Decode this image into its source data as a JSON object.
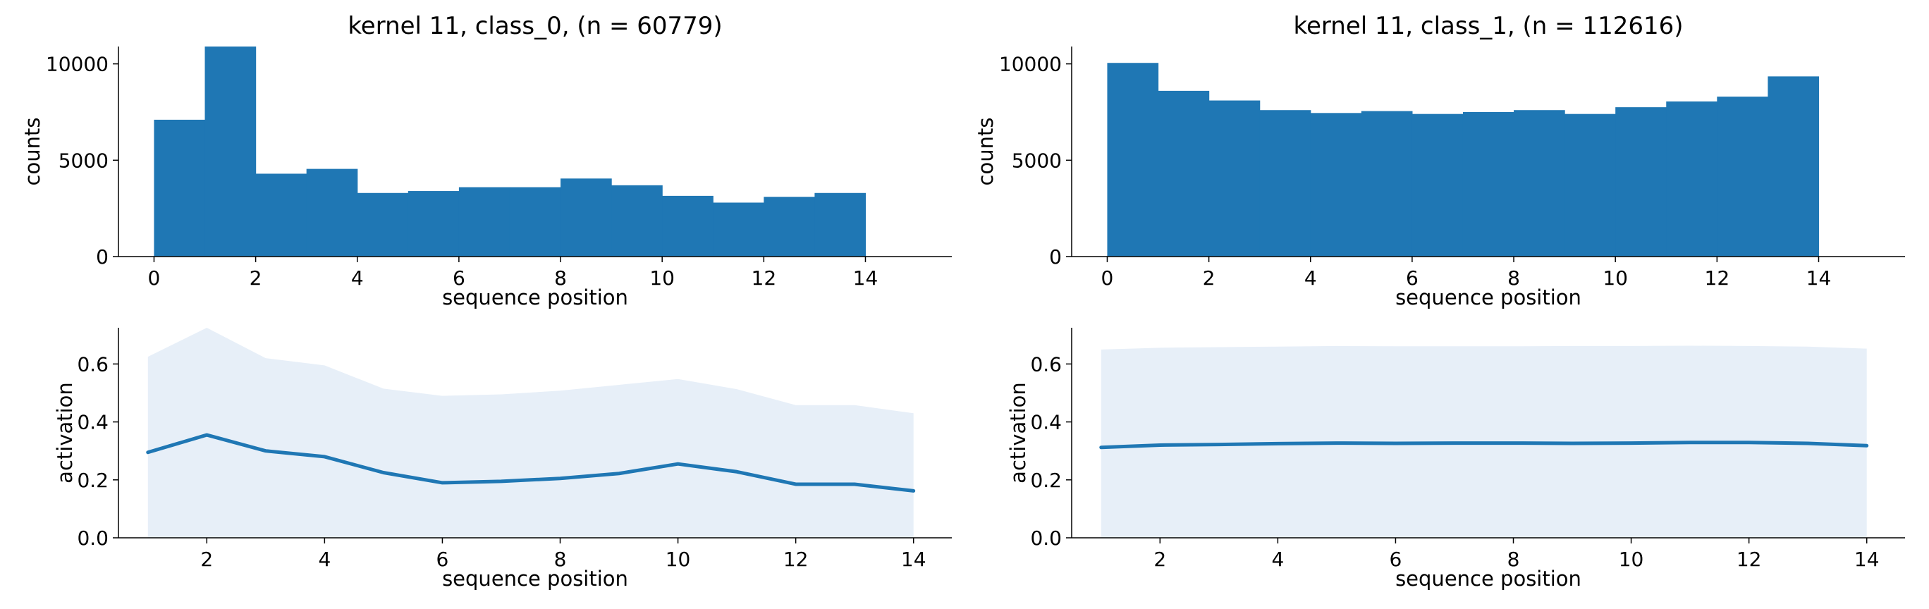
{
  "chart_data": [
    {
      "type": "bar",
      "title": "kernel 11, class_0, (n = 60779)",
      "xlabel": "sequence position",
      "ylabel": "counts",
      "bin_edges": [
        0,
        1,
        2,
        3,
        4,
        5,
        6,
        7,
        8,
        9,
        10,
        11,
        12,
        13,
        14
      ],
      "values": [
        7100,
        10900,
        4300,
        4550,
        3300,
        3400,
        3600,
        3600,
        4050,
        3700,
        3150,
        2800,
        3100,
        3300
      ],
      "xlim": [
        -0.7,
        15.7
      ],
      "ylim": [
        0,
        10900
      ],
      "xticks": [
        "0",
        "2",
        "4",
        "6",
        "8",
        "10",
        "12",
        "14"
      ],
      "yticks": [
        "0",
        "5000",
        "10000"
      ],
      "grid": false,
      "color": "#1f77b4"
    },
    {
      "type": "bar",
      "title": "kernel 11, class_1, (n = 112616)",
      "xlabel": "sequence position",
      "ylabel": "counts",
      "bin_edges": [
        0,
        1,
        2,
        3,
        4,
        5,
        6,
        7,
        8,
        9,
        10,
        11,
        12,
        13,
        14
      ],
      "values": [
        10050,
        8600,
        8100,
        7600,
        7450,
        7550,
        7400,
        7500,
        7600,
        7400,
        7750,
        8050,
        8300,
        9350
      ],
      "xlim": [
        -0.7,
        15.7
      ],
      "ylim": [
        0,
        10900
      ],
      "xticks": [
        "0",
        "2",
        "4",
        "6",
        "8",
        "10",
        "12",
        "14"
      ],
      "yticks": [
        "0",
        "5000",
        "10000"
      ],
      "grid": false,
      "color": "#1f77b4"
    },
    {
      "type": "area",
      "xlabel": "sequence position",
      "ylabel": "activation",
      "x": [
        1,
        2,
        3,
        4,
        5,
        6,
        7,
        8,
        9,
        10,
        11,
        12,
        13,
        14
      ],
      "mean": [
        0.295,
        0.355,
        0.3,
        0.28,
        0.225,
        0.19,
        0.195,
        0.205,
        0.222,
        0.255,
        0.228,
        0.185,
        0.185,
        0.162
      ],
      "upper": [
        0.625,
        0.725,
        0.62,
        0.595,
        0.515,
        0.49,
        0.495,
        0.508,
        0.528,
        0.548,
        0.513,
        0.458,
        0.458,
        0.43
      ],
      "lower": [
        0,
        0,
        0,
        0,
        0,
        0,
        0,
        0,
        0,
        0,
        0,
        0,
        0,
        0
      ],
      "xlim": [
        0.5,
        14.65
      ],
      "ylim": [
        0,
        0.725
      ],
      "xticks": [
        "2",
        "4",
        "6",
        "8",
        "10",
        "12",
        "14"
      ],
      "yticks": [
        "0.0",
        "0.2",
        "0.4",
        "0.6"
      ],
      "grid": false,
      "line_color": "#1f77b4",
      "band_color": "#e7eff8"
    },
    {
      "type": "area",
      "xlabel": "sequence position",
      "ylabel": "activation",
      "x": [
        1,
        2,
        3,
        4,
        5,
        6,
        7,
        8,
        9,
        10,
        11,
        12,
        13,
        14
      ],
      "mean": [
        0.312,
        0.32,
        0.322,
        0.325,
        0.327,
        0.326,
        0.327,
        0.327,
        0.326,
        0.327,
        0.329,
        0.329,
        0.326,
        0.318
      ],
      "upper": [
        0.65,
        0.656,
        0.658,
        0.66,
        0.662,
        0.661,
        0.661,
        0.661,
        0.662,
        0.662,
        0.663,
        0.662,
        0.66,
        0.653
      ],
      "lower": [
        0,
        0,
        0,
        0,
        0,
        0,
        0,
        0,
        0,
        0,
        0,
        0,
        0,
        0
      ],
      "xlim": [
        0.5,
        14.65
      ],
      "ylim": [
        0,
        0.725
      ],
      "xticks": [
        "2",
        "4",
        "6",
        "8",
        "10",
        "12",
        "14"
      ],
      "yticks": [
        "0.0",
        "0.2",
        "0.4",
        "0.6"
      ],
      "grid": false,
      "line_color": "#1f77b4",
      "band_color": "#e7eff8"
    }
  ]
}
